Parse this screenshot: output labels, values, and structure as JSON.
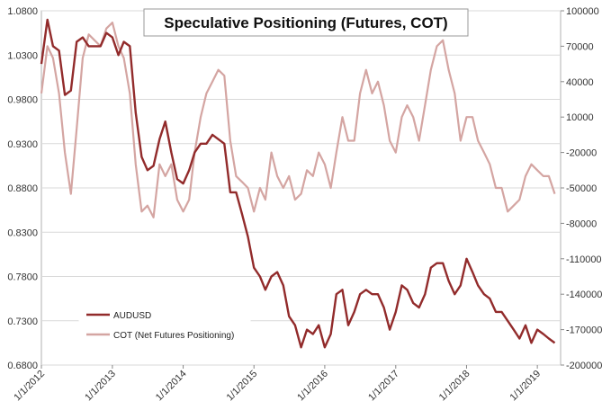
{
  "chart_data": {
    "type": "line",
    "title": "Speculative Positioning (Futures, COT)",
    "legend_position": "bottom-left",
    "grid": {
      "horizontal": true,
      "vertical": false
    },
    "x_ticks": [
      "1/1/2012",
      "1/1/2013",
      "1/1/2014",
      "1/1/2015",
      "1/1/2016",
      "1/1/2017",
      "1/1/2018",
      "1/1/2019"
    ],
    "xlim": [
      "2012-01-01",
      "2019-05-01"
    ],
    "y_left": {
      "lim": [
        0.68,
        1.08
      ],
      "ticks": [
        "0.6800",
        "0.7300",
        "0.7800",
        "0.8300",
        "0.8800",
        "0.9300",
        "0.9800",
        "1.0300",
        "1.0800"
      ]
    },
    "y_right": {
      "lim": [
        -200000,
        100000
      ],
      "ticks": [
        "-200000",
        "-170000",
        "-140000",
        "-110000",
        "-80000",
        "-50000",
        "-20000",
        "10000",
        "40000",
        "70000",
        "100000"
      ]
    },
    "series": [
      {
        "name": "AUDUSD",
        "axis": "left",
        "color": "#922b2b",
        "points": [
          [
            "2012-01-01",
            1.02
          ],
          [
            "2012-02-01",
            1.07
          ],
          [
            "2012-03-01",
            1.04
          ],
          [
            "2012-04-01",
            1.035
          ],
          [
            "2012-05-01",
            0.985
          ],
          [
            "2012-06-01",
            0.99
          ],
          [
            "2012-07-01",
            1.045
          ],
          [
            "2012-08-01",
            1.05
          ],
          [
            "2012-09-01",
            1.04
          ],
          [
            "2012-10-01",
            1.04
          ],
          [
            "2012-11-01",
            1.04
          ],
          [
            "2012-12-01",
            1.055
          ],
          [
            "2013-01-01",
            1.05
          ],
          [
            "2013-02-01",
            1.03
          ],
          [
            "2013-03-01",
            1.045
          ],
          [
            "2013-04-01",
            1.04
          ],
          [
            "2013-05-01",
            0.965
          ],
          [
            "2013-06-01",
            0.915
          ],
          [
            "2013-07-01",
            0.9
          ],
          [
            "2013-08-01",
            0.905
          ],
          [
            "2013-09-01",
            0.935
          ],
          [
            "2013-10-01",
            0.955
          ],
          [
            "2013-11-01",
            0.92
          ],
          [
            "2013-12-01",
            0.89
          ],
          [
            "2014-01-01",
            0.885
          ],
          [
            "2014-02-01",
            0.9
          ],
          [
            "2014-03-01",
            0.92
          ],
          [
            "2014-04-01",
            0.93
          ],
          [
            "2014-05-01",
            0.93
          ],
          [
            "2014-06-01",
            0.94
          ],
          [
            "2014-07-01",
            0.935
          ],
          [
            "2014-08-01",
            0.93
          ],
          [
            "2014-09-01",
            0.875
          ],
          [
            "2014-10-01",
            0.875
          ],
          [
            "2014-11-01",
            0.85
          ],
          [
            "2014-12-01",
            0.825
          ],
          [
            "2015-01-01",
            0.79
          ],
          [
            "2015-02-01",
            0.78
          ],
          [
            "2015-03-01",
            0.765
          ],
          [
            "2015-04-01",
            0.78
          ],
          [
            "2015-05-01",
            0.785
          ],
          [
            "2015-06-01",
            0.77
          ],
          [
            "2015-07-01",
            0.735
          ],
          [
            "2015-08-01",
            0.725
          ],
          [
            "2015-09-01",
            0.7
          ],
          [
            "2015-10-01",
            0.72
          ],
          [
            "2015-11-01",
            0.715
          ],
          [
            "2015-12-01",
            0.725
          ],
          [
            "2016-01-01",
            0.7
          ],
          [
            "2016-02-01",
            0.715
          ],
          [
            "2016-03-01",
            0.76
          ],
          [
            "2016-04-01",
            0.765
          ],
          [
            "2016-05-01",
            0.725
          ],
          [
            "2016-06-01",
            0.74
          ],
          [
            "2016-07-01",
            0.76
          ],
          [
            "2016-08-01",
            0.765
          ],
          [
            "2016-09-01",
            0.76
          ],
          [
            "2016-10-01",
            0.76
          ],
          [
            "2016-11-01",
            0.745
          ],
          [
            "2016-12-01",
            0.72
          ],
          [
            "2017-01-01",
            0.74
          ],
          [
            "2017-02-01",
            0.77
          ],
          [
            "2017-03-01",
            0.765
          ],
          [
            "2017-04-01",
            0.75
          ],
          [
            "2017-05-01",
            0.745
          ],
          [
            "2017-06-01",
            0.76
          ],
          [
            "2017-07-01",
            0.79
          ],
          [
            "2017-08-01",
            0.795
          ],
          [
            "2017-09-01",
            0.795
          ],
          [
            "2017-10-01",
            0.775
          ],
          [
            "2017-11-01",
            0.76
          ],
          [
            "2017-12-01",
            0.77
          ],
          [
            "2018-01-01",
            0.8
          ],
          [
            "2018-02-01",
            0.785
          ],
          [
            "2018-03-01",
            0.77
          ],
          [
            "2018-04-01",
            0.76
          ],
          [
            "2018-05-01",
            0.755
          ],
          [
            "2018-06-01",
            0.74
          ],
          [
            "2018-07-01",
            0.74
          ],
          [
            "2018-08-01",
            0.73
          ],
          [
            "2018-09-01",
            0.72
          ],
          [
            "2018-10-01",
            0.71
          ],
          [
            "2018-11-01",
            0.725
          ],
          [
            "2018-12-01",
            0.705
          ],
          [
            "2019-01-01",
            0.72
          ],
          [
            "2019-02-01",
            0.715
          ],
          [
            "2019-03-01",
            0.71
          ],
          [
            "2019-04-01",
            0.705
          ]
        ]
      },
      {
        "name": "COT (Net Futures Positioning)",
        "axis": "right",
        "color": "#d4a5a2",
        "points": [
          [
            "2012-01-01",
            30000
          ],
          [
            "2012-02-01",
            70000
          ],
          [
            "2012-03-01",
            60000
          ],
          [
            "2012-04-01",
            30000
          ],
          [
            "2012-05-01",
            -20000
          ],
          [
            "2012-06-01",
            -55000
          ],
          [
            "2012-07-01",
            0
          ],
          [
            "2012-08-01",
            60000
          ],
          [
            "2012-09-01",
            80000
          ],
          [
            "2012-10-01",
            75000
          ],
          [
            "2012-11-01",
            70000
          ],
          [
            "2012-12-01",
            85000
          ],
          [
            "2013-01-01",
            90000
          ],
          [
            "2013-02-01",
            70000
          ],
          [
            "2013-03-01",
            60000
          ],
          [
            "2013-04-01",
            30000
          ],
          [
            "2013-05-01",
            -30000
          ],
          [
            "2013-06-01",
            -70000
          ],
          [
            "2013-07-01",
            -65000
          ],
          [
            "2013-08-01",
            -75000
          ],
          [
            "2013-09-01",
            -30000
          ],
          [
            "2013-10-01",
            -40000
          ],
          [
            "2013-11-01",
            -30000
          ],
          [
            "2013-12-01",
            -60000
          ],
          [
            "2014-01-01",
            -70000
          ],
          [
            "2014-02-01",
            -60000
          ],
          [
            "2014-03-01",
            -20000
          ],
          [
            "2014-04-01",
            10000
          ],
          [
            "2014-05-01",
            30000
          ],
          [
            "2014-06-01",
            40000
          ],
          [
            "2014-07-01",
            50000
          ],
          [
            "2014-08-01",
            45000
          ],
          [
            "2014-09-01",
            -10000
          ],
          [
            "2014-10-01",
            -40000
          ],
          [
            "2014-11-01",
            -45000
          ],
          [
            "2014-12-01",
            -50000
          ],
          [
            "2015-01-01",
            -70000
          ],
          [
            "2015-02-01",
            -50000
          ],
          [
            "2015-03-01",
            -60000
          ],
          [
            "2015-04-01",
            -20000
          ],
          [
            "2015-05-01",
            -40000
          ],
          [
            "2015-06-01",
            -50000
          ],
          [
            "2015-07-01",
            -40000
          ],
          [
            "2015-08-01",
            -60000
          ],
          [
            "2015-09-01",
            -55000
          ],
          [
            "2015-10-01",
            -35000
          ],
          [
            "2015-11-01",
            -40000
          ],
          [
            "2015-12-01",
            -20000
          ],
          [
            "2016-01-01",
            -30000
          ],
          [
            "2016-02-01",
            -50000
          ],
          [
            "2016-03-01",
            -20000
          ],
          [
            "2016-04-01",
            10000
          ],
          [
            "2016-05-01",
            -10000
          ],
          [
            "2016-06-01",
            -10000
          ],
          [
            "2016-07-01",
            30000
          ],
          [
            "2016-08-01",
            50000
          ],
          [
            "2016-09-01",
            30000
          ],
          [
            "2016-10-01",
            40000
          ],
          [
            "2016-11-01",
            20000
          ],
          [
            "2016-12-01",
            -10000
          ],
          [
            "2017-01-01",
            -20000
          ],
          [
            "2017-02-01",
            10000
          ],
          [
            "2017-03-01",
            20000
          ],
          [
            "2017-04-01",
            10000
          ],
          [
            "2017-05-01",
            -10000
          ],
          [
            "2017-06-01",
            20000
          ],
          [
            "2017-07-01",
            50000
          ],
          [
            "2017-08-01",
            70000
          ],
          [
            "2017-09-01",
            75000
          ],
          [
            "2017-10-01",
            50000
          ],
          [
            "2017-11-01",
            30000
          ],
          [
            "2017-12-01",
            -10000
          ],
          [
            "2018-01-01",
            10000
          ],
          [
            "2018-02-01",
            10000
          ],
          [
            "2018-03-01",
            -10000
          ],
          [
            "2018-04-01",
            -20000
          ],
          [
            "2018-05-01",
            -30000
          ],
          [
            "2018-06-01",
            -50000
          ],
          [
            "2018-07-01",
            -50000
          ],
          [
            "2018-08-01",
            -70000
          ],
          [
            "2018-09-01",
            -65000
          ],
          [
            "2018-10-01",
            -60000
          ],
          [
            "2018-11-01",
            -40000
          ],
          [
            "2018-12-01",
            -30000
          ],
          [
            "2019-01-01",
            -35000
          ],
          [
            "2019-02-01",
            -40000
          ],
          [
            "2019-03-01",
            -40000
          ],
          [
            "2019-04-01",
            -55000
          ]
        ]
      }
    ]
  }
}
